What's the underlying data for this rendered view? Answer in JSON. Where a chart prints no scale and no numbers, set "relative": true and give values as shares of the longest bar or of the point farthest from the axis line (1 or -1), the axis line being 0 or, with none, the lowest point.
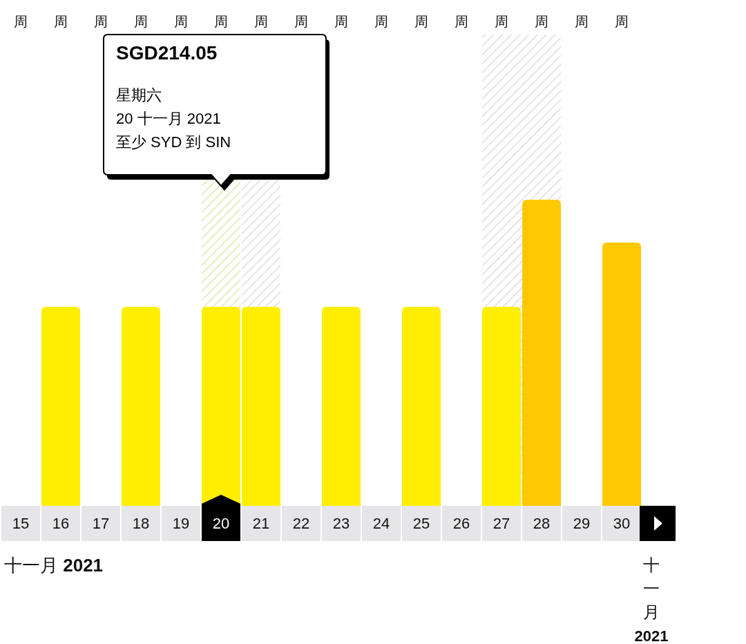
{
  "chart_data": {
    "type": "bar",
    "relative": true,
    "categories": [
      "15",
      "16",
      "17",
      "18",
      "19",
      "20",
      "21",
      "22",
      "23",
      "24",
      "25",
      "26",
      "27",
      "28",
      "29",
      "30"
    ],
    "values": [
      null,
      0.65,
      null,
      0.65,
      null,
      0.65,
      0.65,
      null,
      0.65,
      null,
      0.65,
      null,
      0.65,
      1,
      null,
      0.86
    ],
    "colors": [
      null,
      "#ffee00",
      null,
      "#ffee00",
      null,
      "#ffee00",
      "#ffee00",
      null,
      "#ffee00",
      null,
      "#ffee00",
      null,
      "#ffee00",
      "#ffc800",
      null,
      "#ffc800"
    ],
    "bands": [
      {
        "axis": "x",
        "from": "20",
        "to": "20",
        "color": "#e2e6a8",
        "label": "SGD214.05\n星期六\n20 十一月 2021\n至少 SYD 到 SIN"
      },
      {
        "axis": "x",
        "from": "21",
        "to": "21",
        "color": "#dcdce2"
      },
      {
        "axis": "x",
        "from": "27",
        "to": "28",
        "color": "#dcdce2"
      }
    ],
    "xlabel": "十一月 2021",
    "annotations": [
      "周",
      "周",
      "周",
      "周",
      "周",
      "周",
      "周",
      "周",
      "周",
      "周",
      "周",
      "周",
      "周",
      "周",
      "周",
      "周",
      "十一月 2021"
    ]
  }
}
